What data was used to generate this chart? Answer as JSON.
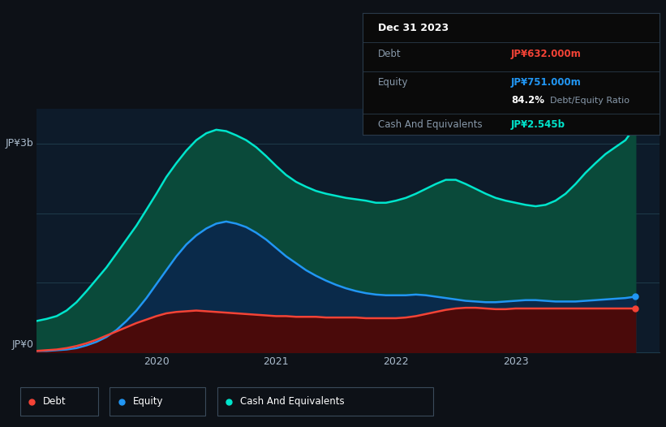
{
  "background_color": "#0d1117",
  "plot_bg_color": "#0d1b2a",
  "grid_color": "#1e3a4a",
  "series_cash_color": "#00e5cc",
  "series_cash_fill": "#0a4a3a",
  "series_equity_color": "#2196f3",
  "series_equity_fill": "#0a2a4a",
  "series_debt_color": "#f44336",
  "series_debt_fill": "#4a0a0a",
  "label_debt": "Debt",
  "label_equity": "Equity",
  "label_cash": "Cash And Equivalents",
  "xlabel_ticks": [
    "2020",
    "2021",
    "2022",
    "2023"
  ],
  "ylabel_top": "JP¥3b",
  "ylabel_bot": "JP¥0",
  "tooltip_title": "Dec 31 2023",
  "tooltip_debt_label": "Debt",
  "tooltip_debt_value": "JP¥632.000m",
  "tooltip_debt_color": "#f44336",
  "tooltip_equity_label": "Equity",
  "tooltip_equity_value": "JP¥751.000m",
  "tooltip_equity_color": "#2196f3",
  "tooltip_ratio": "84.2%",
  "tooltip_ratio_label": "Debt/Equity Ratio",
  "tooltip_cash_label": "Cash And Equivalents",
  "tooltip_cash_value": "JP¥2.545b",
  "tooltip_cash_color": "#00e5cc",
  "tooltip_dim_color": "#8899aa",
  "tooltip_white": "#ffffff",
  "ylim": [
    0,
    3.5
  ],
  "xlim": [
    0,
    5.2
  ],
  "t": [
    0.0,
    0.083,
    0.167,
    0.25,
    0.333,
    0.417,
    0.5,
    0.583,
    0.667,
    0.75,
    0.833,
    0.917,
    1.0,
    1.083,
    1.167,
    1.25,
    1.333,
    1.417,
    1.5,
    1.583,
    1.667,
    1.75,
    1.833,
    1.917,
    2.0,
    2.083,
    2.167,
    2.25,
    2.333,
    2.417,
    2.5,
    2.583,
    2.667,
    2.75,
    2.833,
    2.917,
    3.0,
    3.083,
    3.167,
    3.25,
    3.333,
    3.417,
    3.5,
    3.583,
    3.667,
    3.75,
    3.833,
    3.917,
    4.0,
    4.083,
    4.167,
    4.25,
    4.333,
    4.417,
    4.5,
    4.583,
    4.667,
    4.75,
    4.833,
    4.917,
    5.0
  ],
  "cash_y": [
    0.45,
    0.48,
    0.52,
    0.6,
    0.72,
    0.88,
    1.05,
    1.22,
    1.42,
    1.62,
    1.82,
    2.05,
    2.28,
    2.52,
    2.72,
    2.9,
    3.05,
    3.15,
    3.2,
    3.18,
    3.12,
    3.05,
    2.95,
    2.82,
    2.68,
    2.55,
    2.45,
    2.38,
    2.32,
    2.28,
    2.25,
    2.22,
    2.2,
    2.18,
    2.15,
    2.15,
    2.18,
    2.22,
    2.28,
    2.35,
    2.42,
    2.48,
    2.48,
    2.42,
    2.35,
    2.28,
    2.22,
    2.18,
    2.15,
    2.12,
    2.1,
    2.12,
    2.18,
    2.28,
    2.42,
    2.58,
    2.72,
    2.85,
    2.95,
    3.05,
    3.25
  ],
  "equity_y": [
    0.02,
    0.02,
    0.03,
    0.04,
    0.06,
    0.1,
    0.15,
    0.22,
    0.32,
    0.45,
    0.6,
    0.78,
    0.98,
    1.18,
    1.38,
    1.55,
    1.68,
    1.78,
    1.85,
    1.88,
    1.85,
    1.8,
    1.72,
    1.62,
    1.5,
    1.38,
    1.28,
    1.18,
    1.1,
    1.03,
    0.97,
    0.92,
    0.88,
    0.85,
    0.83,
    0.82,
    0.82,
    0.82,
    0.83,
    0.82,
    0.8,
    0.78,
    0.76,
    0.74,
    0.73,
    0.72,
    0.72,
    0.73,
    0.74,
    0.75,
    0.75,
    0.74,
    0.73,
    0.73,
    0.73,
    0.74,
    0.75,
    0.76,
    0.77,
    0.78,
    0.8
  ],
  "debt_y": [
    0.02,
    0.03,
    0.04,
    0.06,
    0.09,
    0.13,
    0.18,
    0.24,
    0.3,
    0.36,
    0.42,
    0.47,
    0.52,
    0.56,
    0.58,
    0.59,
    0.6,
    0.59,
    0.58,
    0.57,
    0.56,
    0.55,
    0.54,
    0.53,
    0.52,
    0.52,
    0.51,
    0.51,
    0.51,
    0.5,
    0.5,
    0.5,
    0.5,
    0.49,
    0.49,
    0.49,
    0.49,
    0.5,
    0.52,
    0.55,
    0.58,
    0.61,
    0.63,
    0.64,
    0.64,
    0.63,
    0.62,
    0.62,
    0.63,
    0.63,
    0.63,
    0.63,
    0.63,
    0.63,
    0.63,
    0.63,
    0.63,
    0.63,
    0.63,
    0.63,
    0.63
  ]
}
